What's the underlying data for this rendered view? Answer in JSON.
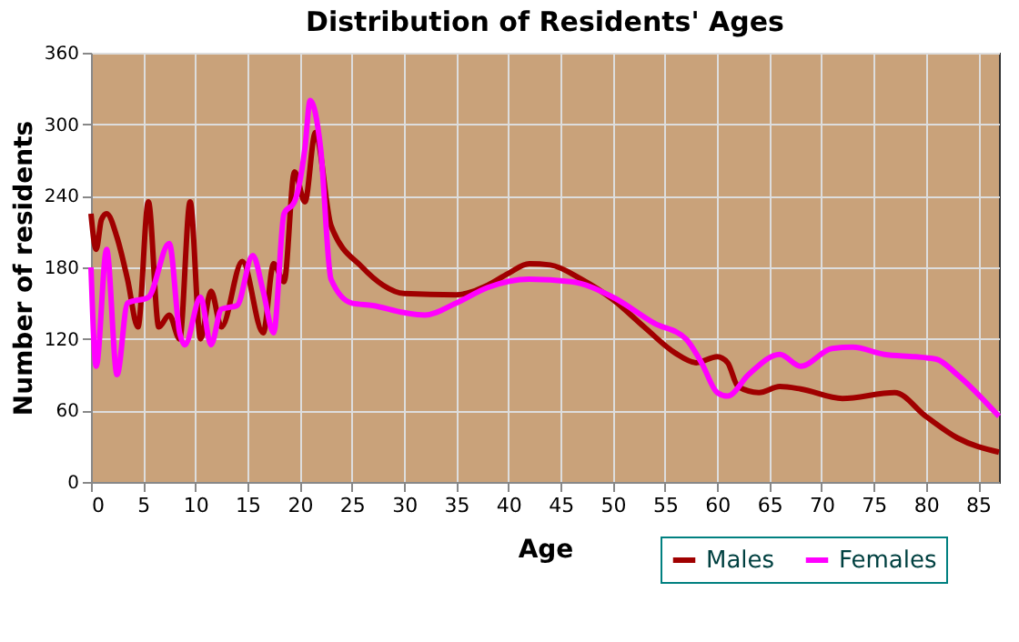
{
  "chart_data": {
    "type": "line",
    "title": "Distribution of Residents' Ages",
    "xlabel": "Age",
    "ylabel": "Number of residents",
    "xlim": [
      0,
      87
    ],
    "xticks": [
      0,
      5,
      10,
      15,
      20,
      25,
      30,
      35,
      40,
      45,
      50,
      55,
      60,
      65,
      70,
      75,
      80,
      85
    ],
    "ylim": [
      0,
      360
    ],
    "yticks": [
      0,
      60,
      120,
      180,
      240,
      300,
      360
    ],
    "grid": true,
    "legend": "bottom right",
    "marker": "none",
    "line_style": "solid",
    "series": [
      {
        "name": "Males",
        "color": "#a00000",
        "x": [
          0,
          0.5,
          1,
          1.5,
          2.5,
          3.5,
          4.5,
          5.5,
          6.5,
          7.5,
          8.5,
          9.5,
          10.5,
          11.5,
          12.5,
          14.5,
          16.5,
          17.5,
          18.5,
          19.5,
          20.5,
          21.5,
          23,
          26,
          28,
          30,
          35,
          38,
          40,
          42,
          44,
          47,
          50,
          53,
          56,
          58,
          60,
          61,
          62,
          64,
          66,
          68,
          72,
          77,
          80,
          83,
          87
        ],
        "values": [
          225,
          195,
          220,
          225,
          205,
          170,
          130,
          235,
          130,
          140,
          120,
          235,
          120,
          160,
          130,
          185,
          125,
          183,
          168,
          260,
          235,
          293,
          215,
          180,
          165,
          158,
          157,
          165,
          175,
          183,
          182,
          170,
          153,
          130,
          108,
          100,
          105,
          100,
          80,
          75,
          80,
          78,
          70,
          75,
          55,
          37,
          25
        ]
      },
      {
        "name": "Females",
        "color": "#ff00ff",
        "x": [
          0,
          0.5,
          1.5,
          2.5,
          3.5,
          5.5,
          7.5,
          8.5,
          9,
          10.5,
          11.5,
          12.5,
          14,
          15.5,
          16.5,
          17.5,
          18.5,
          19.5,
          20.5,
          21,
          22,
          23,
          25,
          27,
          30,
          32,
          35,
          38,
          42,
          46,
          50,
          54,
          57,
          58.5,
          60,
          61,
          63,
          66,
          68,
          71,
          73,
          76,
          79,
          81,
          83,
          87
        ],
        "values": [
          180,
          97,
          195,
          90,
          150,
          155,
          200,
          125,
          115,
          155,
          115,
          145,
          148,
          190,
          160,
          125,
          225,
          235,
          280,
          320,
          280,
          170,
          150,
          148,
          142,
          140,
          150,
          163,
          170,
          168,
          155,
          133,
          120,
          100,
          75,
          72,
          90,
          107,
          97,
          112,
          113,
          107,
          105,
          103,
          90,
          55
        ]
      }
    ]
  }
}
